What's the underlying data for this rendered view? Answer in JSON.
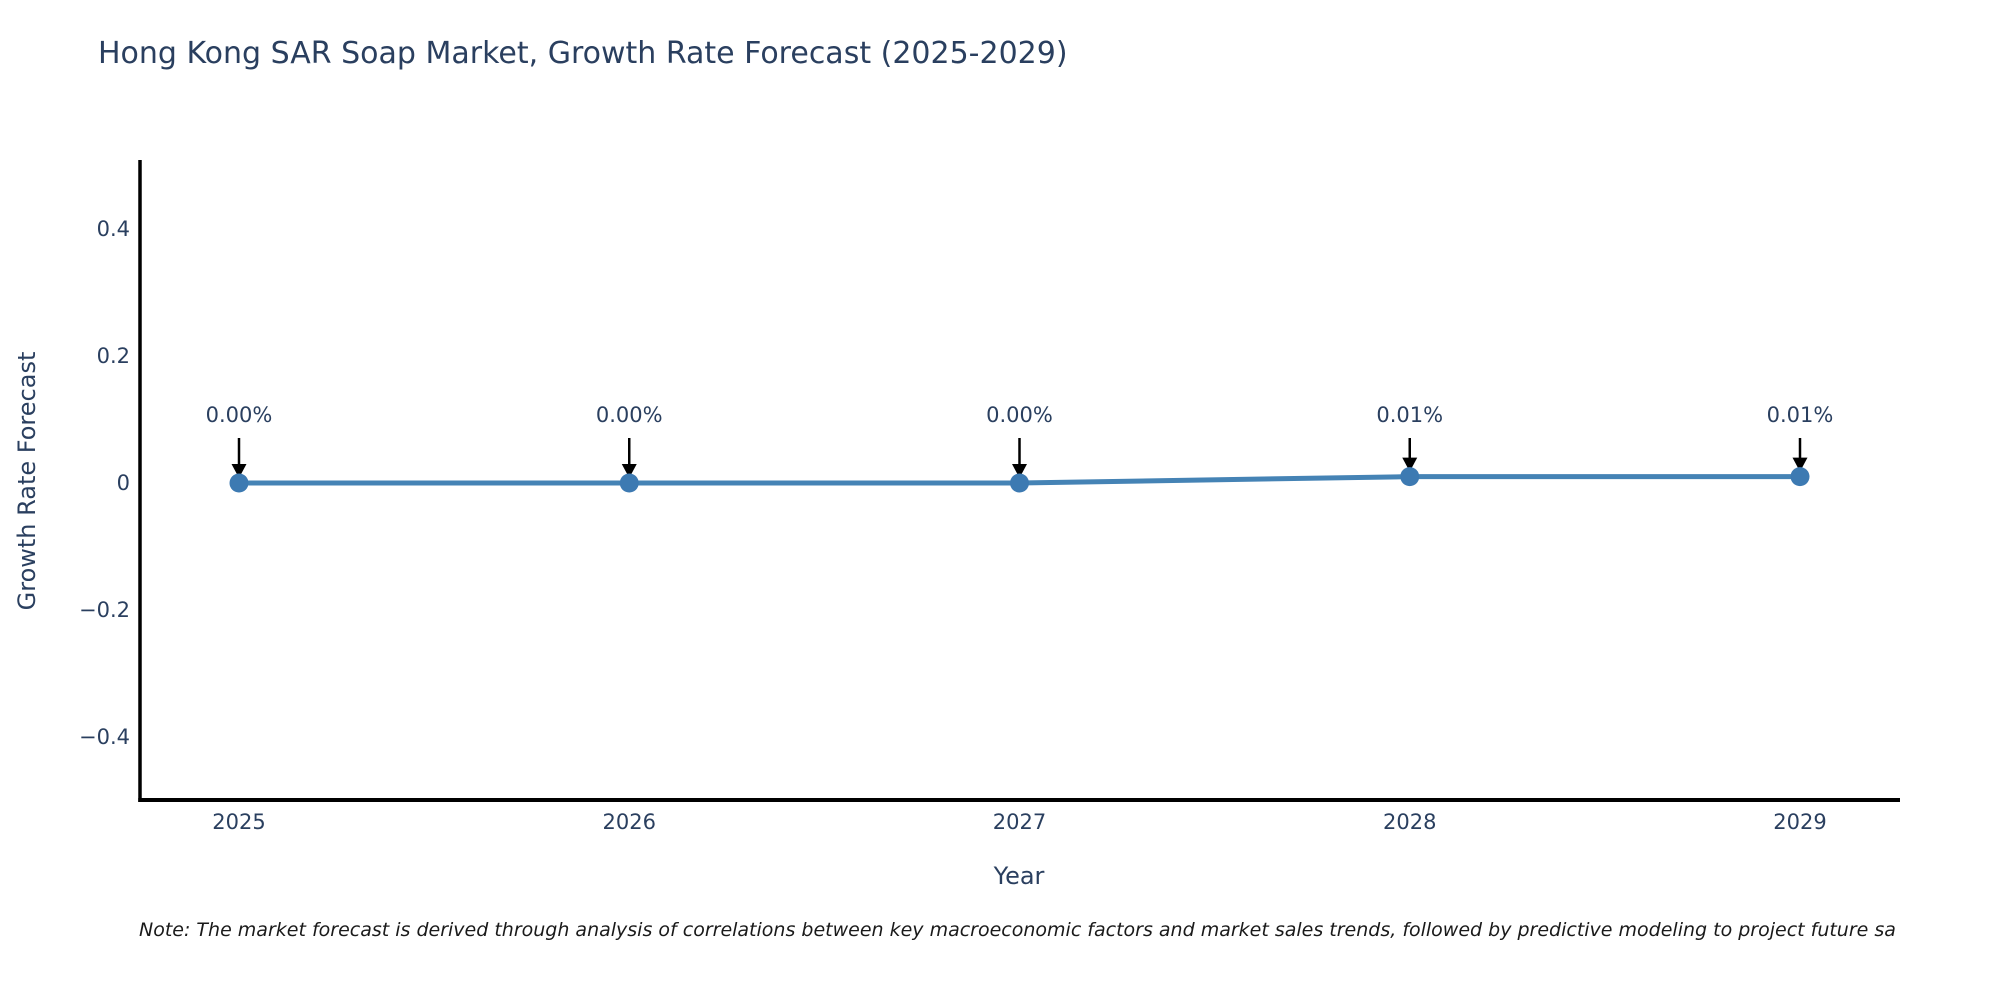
{
  "title": "Hong Kong SAR Soap Market, Growth Rate Forecast (2025-2029)",
  "note": "Note: The market forecast is derived through analysis of correlations between key macroeconomic factors and market sales trends, followed by predictive modeling to project future sa",
  "chart_data": {
    "type": "line",
    "title": "Hong Kong SAR Soap Market, Growth Rate Forecast (2025-2029)",
    "xlabel": "Year",
    "ylabel": "Growth Rate Forecast",
    "x": [
      2025,
      2026,
      2027,
      2028,
      2029
    ],
    "x_tick_labels": [
      "2025",
      "2026",
      "2027",
      "2028",
      "2029"
    ],
    "values": [
      0.0,
      0.0,
      0.0,
      0.01,
      0.01
    ],
    "point_labels": [
      "0.00%",
      "0.00%",
      "0.00%",
      "0.01%",
      "0.01%"
    ],
    "y_tick_labels": [
      "0.4",
      "0.2",
      "0",
      "−0.2",
      "−0.4"
    ],
    "y_tick_values": [
      0.4,
      0.2,
      0,
      -0.2,
      -0.4
    ],
    "ylim": [
      -0.5,
      0.51
    ],
    "grid": false,
    "legend": "none",
    "annotation_style": "black-down-arrow",
    "colors": {
      "line": "#4583b5",
      "marker": "#3d7ab2",
      "arrow": "#000000",
      "axis": "#000000",
      "text": "#2a3f5f",
      "note_text": "#1a1a1a"
    }
  }
}
